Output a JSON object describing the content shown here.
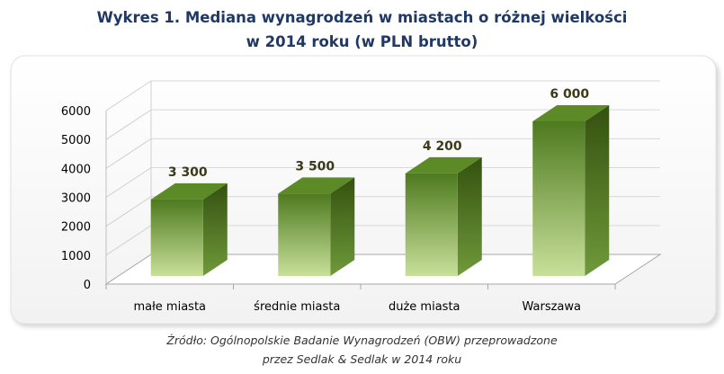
{
  "title": {
    "line1": "Wykres 1. Mediana wynagrodzeń w miastach o różnej wielkości",
    "line2": "w 2014 roku (w PLN brutto)"
  },
  "source": {
    "line1": "Źródło: Ogólnopolskie Badanie Wynagrodzeń (OBW) przeprowadzone",
    "line2": "przez Sedlak & Sedlak w 2014 roku"
  },
  "colors": {
    "bar_front_light": "#c8e09a",
    "bar_front_dark": "#4e7a1f",
    "bar_side": "#3d5d16",
    "bar_top": "#5c8a26",
    "label_text": "#3b3b1a",
    "axis_text": "#000000"
  },
  "chart_data": {
    "type": "bar",
    "categories": [
      "małe miasta",
      "średnie miasta",
      "duże miasta",
      "Warszawa"
    ],
    "values": [
      3300,
      3500,
      4200,
      6000
    ],
    "value_labels": [
      "3 300",
      "3 500",
      "4 200",
      "6 000"
    ],
    "yticks": [
      "0",
      "1000",
      "2000",
      "3000",
      "4000",
      "5000",
      "6000"
    ],
    "ylim": [
      0,
      6000
    ],
    "xlabel": "",
    "ylabel": "",
    "grid": true,
    "style": "3d"
  }
}
